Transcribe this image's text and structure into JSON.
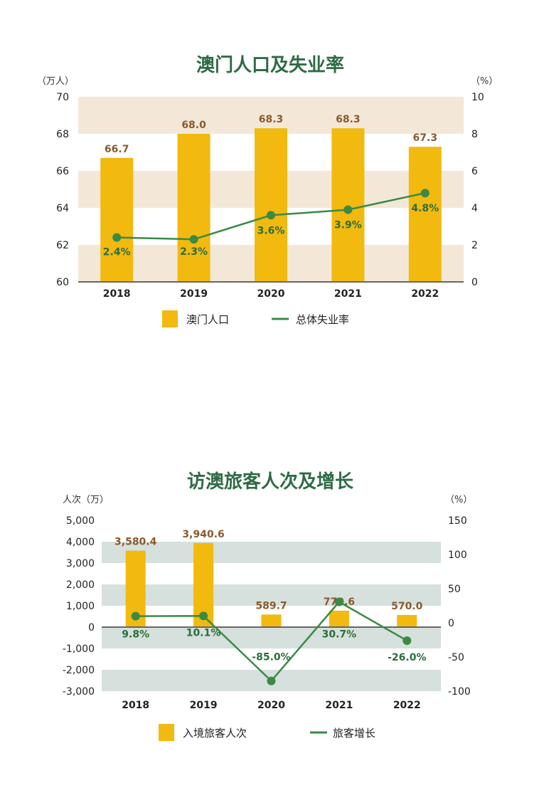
{
  "chart_data": [
    {
      "type": "bar",
      "title": "澳门人口及失业率",
      "left_axis_unit": "（万人）",
      "right_axis_unit": "（%）",
      "categories": [
        "2018",
        "2019",
        "2020",
        "2021",
        "2022"
      ],
      "ylim_left": [
        60,
        70
      ],
      "ylim_right": [
        0,
        10
      ],
      "left_ticks": [
        "60",
        "62",
        "64",
        "66",
        "68",
        "70"
      ],
      "right_ticks": [
        "0",
        "2",
        "4",
        "6",
        "8",
        "10"
      ],
      "series": [
        {
          "name": "澳门人口",
          "type": "bar",
          "axis": "left",
          "values": [
            66.7,
            68.0,
            68.3,
            68.3,
            67.3
          ],
          "labels": [
            "66.7",
            "68.0",
            "68.3",
            "68.3",
            "67.3"
          ]
        },
        {
          "name": "总体失业率",
          "type": "line",
          "axis": "right",
          "values": [
            2.4,
            2.3,
            3.6,
            3.9,
            4.8
          ],
          "labels": [
            "2.4%",
            "2.3%",
            "3.6%",
            "3.9%",
            "4.8%"
          ]
        }
      ],
      "grid": "alternating horizontal bands",
      "legend": "bottom",
      "colors": {
        "bar": "#f2b90f",
        "line": "#3a8a44",
        "band": "#f3e8d8",
        "title": "#2f6b45"
      }
    },
    {
      "type": "bar",
      "title": "访澳旅客人次及增长",
      "left_axis_unit": "人次（万）",
      "right_axis_unit": "（%）",
      "categories": [
        "2018",
        "2019",
        "2020",
        "2021",
        "2022"
      ],
      "ylim_left": [
        -3000,
        5000
      ],
      "ylim_right": [
        -100,
        150
      ],
      "left_ticks": [
        "-3,000",
        "-2,000",
        "-1,000",
        "0",
        "1,000",
        "2,000",
        "3,000",
        "4,000",
        "5,000"
      ],
      "right_ticks": [
        "-100",
        "-50",
        "0",
        "50",
        "100",
        "150"
      ],
      "series": [
        {
          "name": "入境旅客人次",
          "type": "bar",
          "axis": "left",
          "values": [
            3580.4,
            3940.6,
            589.7,
            770.6,
            570.0
          ],
          "labels": [
            "3,580.4",
            "3,940.6",
            "589.7",
            "770.6",
            "570.0"
          ]
        },
        {
          "name": "旅客增长",
          "type": "line",
          "axis": "right",
          "values": [
            9.8,
            10.1,
            -85.0,
            30.7,
            -26.0
          ],
          "labels": [
            "9.8%",
            "10.1%",
            "-85.0%",
            "30.7%",
            "-26.0%"
          ]
        }
      ],
      "grid": "alternating horizontal bands",
      "legend": "bottom",
      "colors": {
        "bar": "#f2b90f",
        "line": "#3a8a44",
        "band": "#d6e0dc",
        "title": "#2f6b45"
      }
    }
  ]
}
